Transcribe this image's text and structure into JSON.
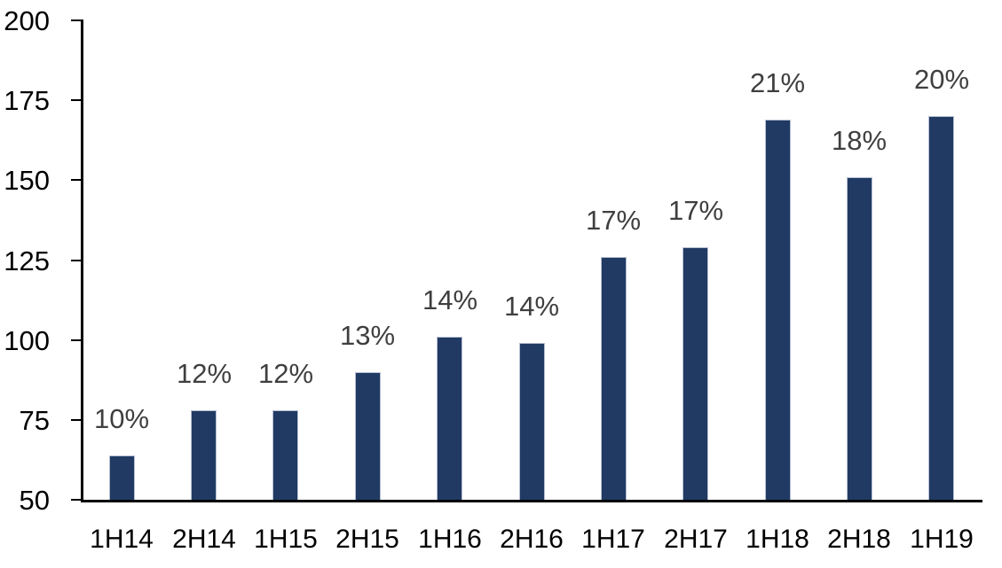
{
  "chart_data": {
    "type": "bar",
    "title": "",
    "xlabel": "",
    "ylabel": "",
    "categories": [
      "1H14",
      "2H14",
      "1H15",
      "2H15",
      "1H16",
      "2H16",
      "1H17",
      "2H17",
      "1H18",
      "2H18",
      "1H19"
    ],
    "values": [
      64,
      78,
      78,
      90,
      101,
      99,
      126,
      129,
      169,
      151,
      170
    ],
    "bar_labels": [
      "10%",
      "12%",
      "12%",
      "13%",
      "14%",
      "14%",
      "17%",
      "17%",
      "21%",
      "18%",
      "20%"
    ],
    "ylim": [
      50,
      200
    ],
    "yticks": [
      50,
      75,
      100,
      125,
      150,
      175,
      200
    ],
    "grid": false,
    "legend_position": "none",
    "colors": {
      "bar_fill": "#203A63",
      "bar_border": "#B7BFD2",
      "bar_label_text": "#3F3F3F",
      "axis_line": "#000000",
      "tick_label_text": "#000000",
      "background": "#FFFFFF"
    }
  }
}
